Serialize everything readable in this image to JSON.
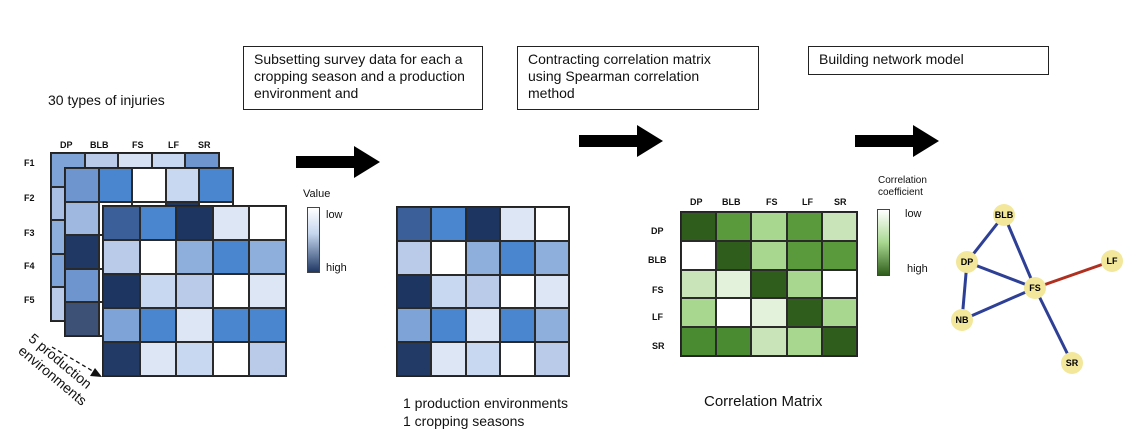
{
  "steps": {
    "subset": "Subsetting survey data for each a cropping season and a production environment and",
    "correlation": "Contracting correlation matrix using Spearman correlation method",
    "network": "Building network model"
  },
  "left": {
    "title": "30 types of injuries",
    "columns": [
      "DP",
      "BLB",
      "FS",
      "LF",
      "SR"
    ],
    "rows": [
      "F1",
      "F2",
      "F3",
      "F4",
      "F5"
    ],
    "stack_label": "5 production environments"
  },
  "value_legend": {
    "title": "Value",
    "low": "low",
    "high": "high"
  },
  "subset_caption": [
    "1 production environments",
    "1 cropping seasons"
  ],
  "corr": {
    "columns": [
      "DP",
      "BLB",
      "FS",
      "LF",
      "SR"
    ],
    "rows": [
      "DP",
      "BLB",
      "FS",
      "LF",
      "SR"
    ],
    "caption": "Correlation Matrix",
    "legend_title": "Correlation coefficient",
    "low": "low",
    "high": "high"
  },
  "network": {
    "nodes": [
      "BLB",
      "DP",
      "LF",
      "FS",
      "NB",
      "SR"
    ]
  },
  "colors": {
    "blue_dark": "#1f3864",
    "blue_mid": "#4a86cf",
    "blue_light": "#c5d6ee",
    "green_dark": "#2f5e1c",
    "green_mid": "#5a9a3c",
    "green_light": "#c8e4b8",
    "node": "#f2e79a",
    "edge_blue": "#2e3f96",
    "edge_red": "#b03020"
  }
}
